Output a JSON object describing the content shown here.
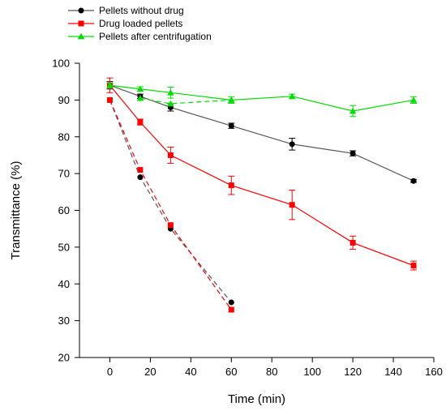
{
  "chart_data": {
    "type": "line",
    "title": "",
    "xlabel": "Time (min)",
    "ylabel": "Transmittance (%)",
    "xlim": [
      -15,
      160
    ],
    "ylim": [
      20,
      100
    ],
    "xticks": [
      0,
      20,
      40,
      60,
      80,
      100,
      120,
      140,
      160
    ],
    "yticks": [
      20,
      30,
      40,
      50,
      60,
      70,
      80,
      90,
      100
    ],
    "grid": false,
    "legend_position": "top-left",
    "series": [
      {
        "name": "Pellets without drug",
        "color": "#000000",
        "line_color": "#555555",
        "marker": "circle",
        "dash": false,
        "x": [
          0,
          15,
          30,
          60,
          90,
          120,
          150
        ],
        "y": [
          94,
          91,
          88,
          83,
          78,
          75.5,
          68
        ],
        "err": [
          1,
          0.6,
          1,
          0.7,
          1.6,
          0.7,
          0.4
        ]
      },
      {
        "name": "Drug loaded pellets",
        "color": "#ff0000",
        "line_color": "#ff0000",
        "marker": "square",
        "dash": false,
        "x": [
          0,
          15,
          30,
          60,
          90,
          120,
          150
        ],
        "y": [
          94,
          84,
          75,
          66.8,
          61.5,
          51.2,
          45
        ],
        "err": [
          2,
          0.8,
          2.2,
          2.5,
          4,
          1.8,
          1.2
        ]
      },
      {
        "name": "Pellets after centrifugation",
        "color": "#00dd00",
        "line_color": "#00dd00",
        "marker": "triangle",
        "dash": false,
        "x": [
          0,
          15,
          30,
          60,
          90,
          120,
          150
        ],
        "y": [
          94,
          93,
          92,
          90,
          91,
          87,
          90
        ],
        "err": [
          0.6,
          0.6,
          1.5,
          0.9,
          0.6,
          1.5,
          0.9
        ]
      },
      {
        "name": "",
        "color": "#00dd00",
        "line_color": "#00dd00",
        "marker": "triangle",
        "dash": true,
        "x": [
          15,
          30,
          60
        ],
        "y": [
          90.5,
          89,
          90
        ],
        "err": [
          0,
          0,
          0
        ]
      },
      {
        "name": "",
        "color": "#000000",
        "line_color": "#555555",
        "marker": "circle",
        "dash": true,
        "x": [
          0,
          15,
          30,
          60
        ],
        "y": [
          90,
          69,
          55,
          35
        ],
        "err": [
          0,
          0,
          0,
          0
        ]
      },
      {
        "name": "",
        "color": "#ff0000",
        "line_color": "#ff0000",
        "marker": "square",
        "dash": true,
        "x": [
          0,
          15,
          30,
          60
        ],
        "y": [
          90,
          71,
          56,
          33
        ],
        "err": [
          0,
          0,
          0,
          0
        ]
      }
    ]
  }
}
